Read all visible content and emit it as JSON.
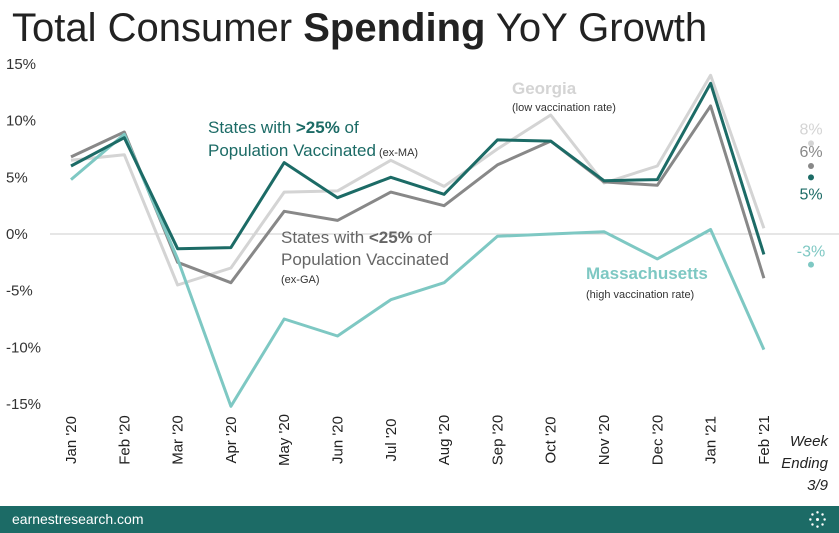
{
  "title": {
    "part1": "Total Consumer ",
    "bold": "Spending",
    "part2": " YoY Growth"
  },
  "chart_data": {
    "type": "line",
    "title": "Total Consumer Spending YoY Growth",
    "xlabel": "",
    "ylabel": "",
    "ylim": [
      -17.5,
      15
    ],
    "yticks": [
      15,
      10,
      5,
      0,
      -5,
      -10,
      -15
    ],
    "ytick_labels": [
      "15%",
      "10%",
      "5%",
      "0%",
      "-5%",
      "-10%",
      "-15%"
    ],
    "categories": [
      "Jan '20",
      "Feb '20",
      "Mar '20",
      "Apr '20",
      "May '20",
      "Jun '20",
      "Jul '20",
      "Aug '20",
      "Sep '20",
      "Oct '20",
      "Nov '20",
      "Dec '20",
      "Jan '21",
      "Feb '21"
    ],
    "x_extra_label": [
      "Week",
      "Ending",
      "3/9"
    ],
    "series": [
      {
        "name": "Georgia",
        "color": "#d4d4d4",
        "values": [
          6.5,
          7,
          -4.5,
          -3,
          3.7,
          3.8,
          6.5,
          4.2,
          7.5,
          10.5,
          4.5,
          6,
          14,
          0.5
        ],
        "week_value": 8,
        "week_label": "8%"
      },
      {
        "name": "States with <25% of Population Vaccinated (ex-GA)",
        "color": "#888888",
        "values": [
          6.8,
          9,
          -2.5,
          -4.3,
          2,
          1.2,
          3.7,
          2.5,
          6.1,
          8.2,
          4.6,
          4.3,
          11.3,
          -3.9
        ],
        "week_value": 6,
        "week_label": "6%"
      },
      {
        "name": "Massachusetts",
        "color": "#7ec8c3",
        "values": [
          4.8,
          8.8,
          -2.2,
          -15.2,
          -7.5,
          -9,
          -5.8,
          -4.3,
          -0.2,
          0,
          0.2,
          -2.2,
          0.4,
          -10.2
        ],
        "week_value": -2.7,
        "week_label": "-3%"
      },
      {
        "name": "States with >25% of Population Vaccinated (ex-MA)",
        "color": "#1c6b66",
        "values": [
          6,
          8.5,
          -1.3,
          -1.2,
          6.3,
          3.2,
          5,
          3.5,
          8.3,
          8.2,
          4.7,
          4.8,
          13.3,
          -1.8
        ],
        "week_value": 5,
        "week_label": "5%"
      }
    ],
    "annotations": {
      "georgia_title": "Georgia",
      "georgia_sub": "(low vaccination rate)",
      "hi_line1_a": "States with ",
      "hi_line1_b": ">25%",
      "hi_line1_c": " of",
      "hi_line2": "Population Vaccinated",
      "hi_line2_sub": " (ex-MA)",
      "lo_line1_a": "States with ",
      "lo_line1_b": "<25%",
      "lo_line1_c": " of",
      "lo_line2": "Population Vaccinated",
      "lo_line3": "(ex-GA)",
      "mass_title": "Massachusetts",
      "mass_sub": "(high vaccination rate)"
    }
  },
  "footer": {
    "text": "earnestresearch.com",
    "logo_icon": "earnest-logo-icon"
  },
  "colors": {
    "teal_dark": "#1c6b66",
    "teal_light": "#7ec8c3",
    "gray": "#888888",
    "light_gray": "#d4d4d4"
  }
}
